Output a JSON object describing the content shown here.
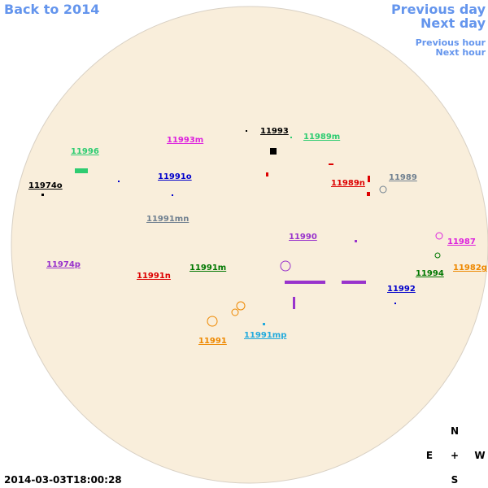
{
  "nav": {
    "back": "Back to 2014",
    "previous_day": "Previous day",
    "next_day": "Next day",
    "previous_hour": "Previous hour",
    "next_hour": "Next hour"
  },
  "regions": [
    {
      "label": "11993",
      "color": "#000000"
    },
    {
      "label": "11989m",
      "color": "#2ecc71"
    },
    {
      "label": "11993m",
      "color": "#dd22dd"
    },
    {
      "label": "11996",
      "color": "#2ecc71"
    },
    {
      "label": "11991o",
      "color": "#0000cc"
    },
    {
      "label": "11989n",
      "color": "#dd0000"
    },
    {
      "label": "11989",
      "color": "#708090"
    },
    {
      "label": "11974o",
      "color": "#000000"
    },
    {
      "label": "11991mn",
      "color": "#708090"
    },
    {
      "label": "11990",
      "color": "#9933cc"
    },
    {
      "label": "11987",
      "color": "#dd22dd"
    },
    {
      "label": "11974p",
      "color": "#9933cc"
    },
    {
      "label": "11991m",
      "color": "#007700"
    },
    {
      "label": "11982g",
      "color": "#ee8800"
    },
    {
      "label": "11994",
      "color": "#007700"
    },
    {
      "label": "11991n",
      "color": "#dd0000"
    },
    {
      "label": "11992",
      "color": "#0000cc"
    },
    {
      "label": "11991",
      "color": "#ee8800"
    },
    {
      "label": "11991mp",
      "color": "#22aadd"
    }
  ],
  "compass": {
    "north": "N",
    "east": "E",
    "center": "+",
    "west": "W",
    "south": "S"
  },
  "timestamp": "2014-03-03T18:00:28"
}
